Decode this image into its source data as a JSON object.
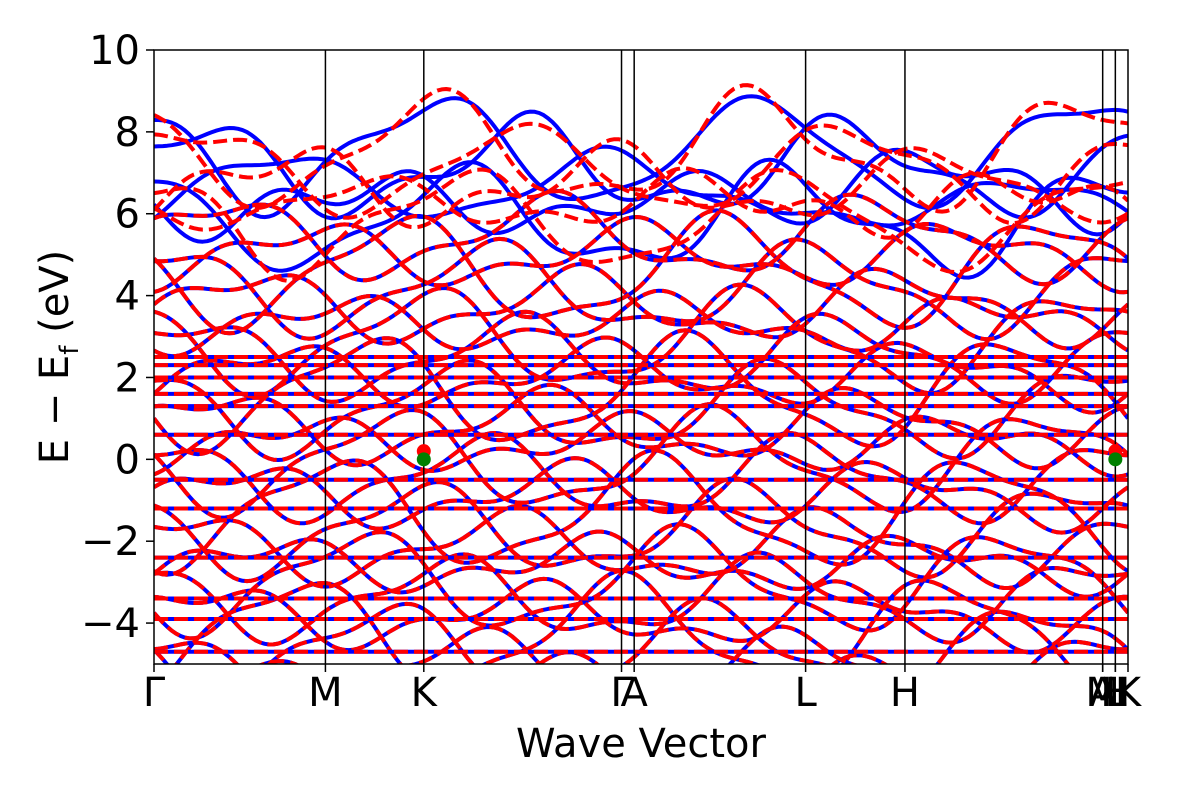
{
  "chart_data": {
    "type": "line",
    "title": "",
    "xlabel": "Wave Vector",
    "ylabel_main": "E − E",
    "ylabel_sub": "f",
    "ylabel_unit": " (eV)",
    "ylim": [
      -5,
      10
    ],
    "yticks": [
      10,
      8,
      6,
      4,
      2,
      0,
      -2,
      -4
    ],
    "ytick_labels": [
      "10",
      "8",
      "6",
      "4",
      "2",
      "0",
      "−2",
      "−4"
    ],
    "xlim": [
      0,
      1
    ],
    "kpoints": [
      {
        "label": "Γ",
        "x": 0.0
      },
      {
        "label": "M",
        "x": 0.176
      },
      {
        "label": "K",
        "x": 0.277
      },
      {
        "label": "Γ",
        "x": 0.48
      },
      {
        "label": "A",
        "x": 0.493
      },
      {
        "label": "L",
        "x": 0.669
      },
      {
        "label": "H",
        "x": 0.771
      },
      {
        "label": "A",
        "x": 0.974
      },
      {
        "label": "L",
        "x": 0.987
      },
      {
        "label": "M",
        "x": 0.974
      },
      {
        "label": "H",
        "x": 0.987
      },
      {
        "label": "K",
        "x": 1.0
      }
    ],
    "segment_boundaries": [
      0.176,
      0.277,
      0.48,
      0.493,
      0.669,
      0.771,
      0.974,
      0.987
    ],
    "vbm_markers": [
      {
        "x": 0.277,
        "y": 0.0,
        "color": "#008000"
      },
      {
        "x": 0.987,
        "y": 0.0,
        "color": "#008000"
      }
    ],
    "cbm_markers": [
      {
        "x": 0.277,
        "y": 0.2,
        "color": "#ff0000"
      },
      {
        "x": 0.987,
        "y": 0.2,
        "color": "#ff0000"
      }
    ],
    "series": [
      {
        "style": "solid",
        "color": "#0000ff"
      },
      {
        "style": "dashed",
        "color": "#ff0000"
      }
    ],
    "flat_bands": [
      0.6,
      1.3,
      1.6,
      2.0,
      2.3,
      2.5,
      -0.5,
      -1.2,
      -2.4,
      -3.4,
      -3.9,
      -4.7
    ],
    "grid": false
  }
}
